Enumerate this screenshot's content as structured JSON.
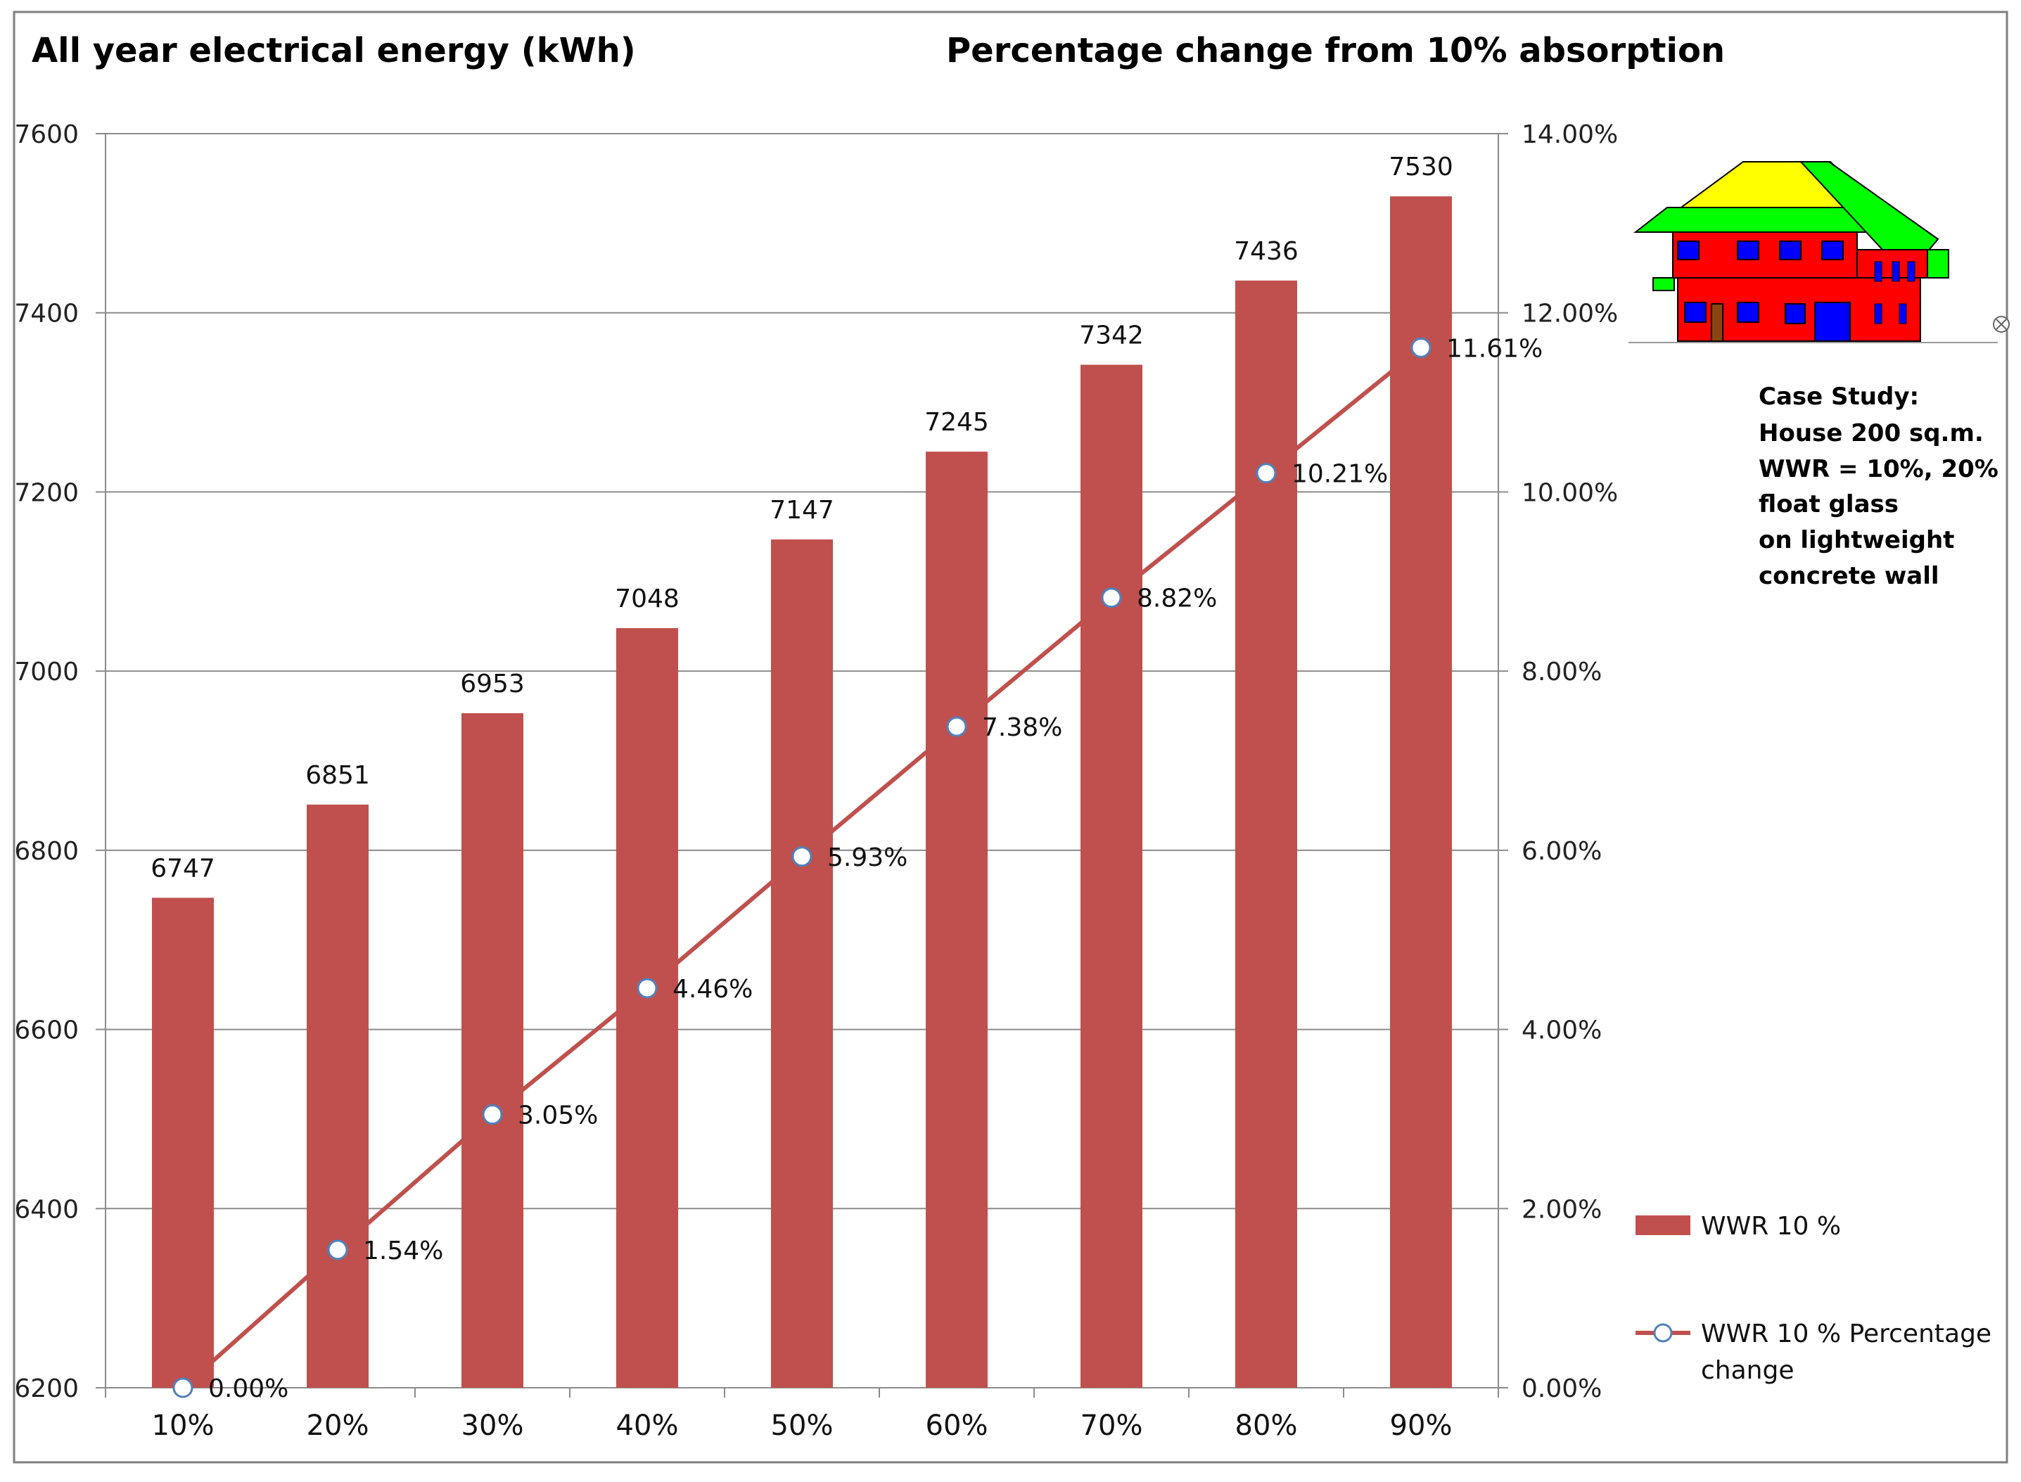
{
  "chart_data": {
    "type": "bar",
    "title_left": "All year electrical energy (kWh)",
    "title_right": "Percentage change from 10% absorption",
    "categories": [
      "10%",
      "20%",
      "30%",
      "40%",
      "50%",
      "60%",
      "70%",
      "80%",
      "90%"
    ],
    "series": [
      {
        "name": "WWR 10 %",
        "type": "bar",
        "axis": "left",
        "values": [
          6747,
          6851,
          6953,
          7048,
          7147,
          7245,
          7342,
          7436,
          7530
        ],
        "labels": [
          "6747",
          "6851",
          "6953",
          "7048",
          "7147",
          "7245",
          "7342",
          "7436",
          "7530"
        ],
        "color": "#C0504D"
      },
      {
        "name": "WWR 10 % Percentage change",
        "type": "line",
        "axis": "right",
        "values": [
          0.0,
          1.54,
          3.05,
          4.46,
          5.93,
          7.38,
          8.82,
          10.21,
          11.61
        ],
        "labels": [
          "0.00%",
          "1.54%",
          "3.05%",
          "4.46%",
          "5.93%",
          "7.38%",
          "8.82%",
          "10.21%",
          "11.61%"
        ],
        "color": "#C0504D",
        "marker_fill": "#FFFFFF",
        "marker_stroke": "#4F81BD"
      }
    ],
    "y_left": {
      "range": [
        6200,
        7600
      ],
      "ticks": [
        "6200",
        "6400",
        "6600",
        "6800",
        "7000",
        "7200",
        "7400",
        "7600"
      ]
    },
    "y_right": {
      "range": [
        0,
        14
      ],
      "ticks": [
        "0.00%",
        "2.00%",
        "4.00%",
        "6.00%",
        "8.00%",
        "10.00%",
        "12.00%",
        "14.00%"
      ]
    },
    "grid": true,
    "legend_position": "right",
    "note_lines": [
      "Case Study:",
      "House 200 sq.m.",
      "WWR = 10%, 20%",
      "float glass",
      "on lightweight",
      "concrete wall"
    ],
    "legend": [
      {
        "label_lines": [
          "WWR 10 %"
        ]
      },
      {
        "label_lines": [
          "WWR 10 % Percentage",
          "change"
        ]
      }
    ]
  },
  "colors": {
    "roof": "#FFFF00",
    "eaves": "#00FF00",
    "walls": "#FF0000",
    "windows": "#0000FF",
    "door": "#8B4513"
  }
}
